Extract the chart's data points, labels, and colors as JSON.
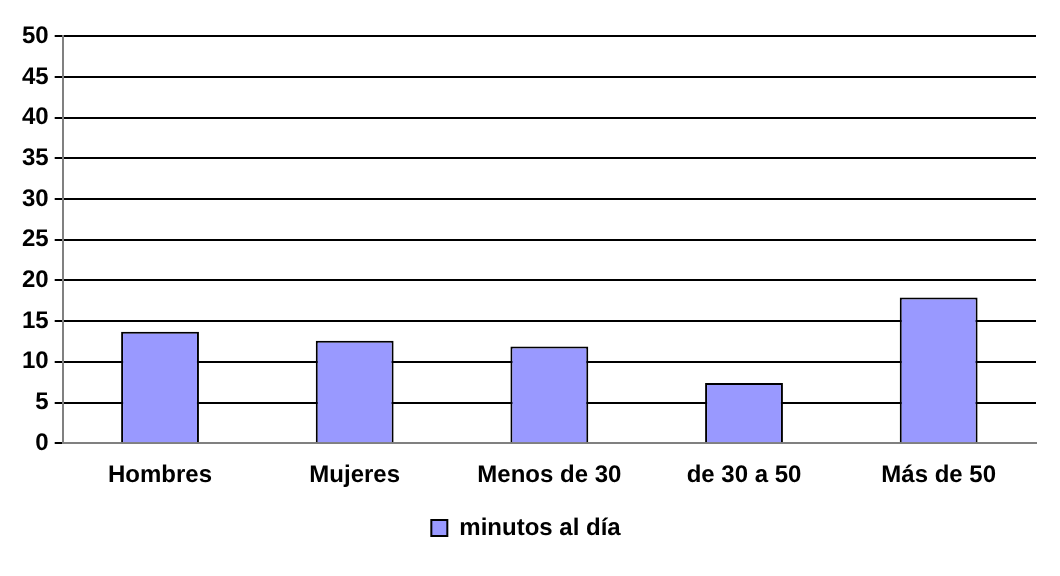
{
  "chart_data": {
    "type": "bar",
    "categories": [
      "Hombres",
      "Mujeres",
      "Menos de 30",
      "de 30 a 50",
      "Más de 50"
    ],
    "series": [
      {
        "name": "minutos al día",
        "color": "#9999ff",
        "values": [
          13.7,
          12.6,
          11.9,
          7.4,
          17.9
        ]
      }
    ],
    "ylim": [
      0,
      50
    ],
    "yticks": [
      0,
      5,
      10,
      15,
      20,
      25,
      30,
      35,
      40,
      45,
      50
    ],
    "grid": "y",
    "legend": "bottom"
  }
}
